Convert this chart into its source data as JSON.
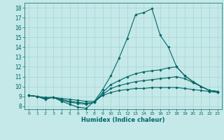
{
  "title": "",
  "xlabel": "Humidex (Indice chaleur)",
  "ylabel": "",
  "bg_color": "#c5e8e8",
  "line_color": "#006666",
  "grid_color": "#a8d5d5",
  "xlim": [
    -0.5,
    23.5
  ],
  "ylim": [
    7.7,
    18.5
  ],
  "yticks": [
    8,
    9,
    10,
    11,
    12,
    13,
    14,
    15,
    16,
    17,
    18
  ],
  "xticks": [
    0,
    1,
    2,
    3,
    4,
    5,
    6,
    7,
    8,
    9,
    10,
    11,
    12,
    13,
    14,
    15,
    16,
    17,
    18,
    19,
    20,
    21,
    22,
    23
  ],
  "lines": [
    {
      "x": [
        0,
        1,
        2,
        3,
        4,
        5,
        6,
        7,
        8,
        9,
        10,
        11,
        12,
        13,
        14,
        15,
        16,
        17,
        18,
        19,
        20,
        21,
        22,
        23
      ],
      "y": [
        9.1,
        9.0,
        8.7,
        8.9,
        8.5,
        8.2,
        7.9,
        7.8,
        8.5,
        9.7,
        11.1,
        12.9,
        14.9,
        17.3,
        17.5,
        17.9,
        15.2,
        14.0,
        12.0,
        11.1,
        10.5,
        10.0,
        9.6,
        9.5
      ]
    },
    {
      "x": [
        0,
        1,
        2,
        3,
        4,
        5,
        6,
        7,
        8,
        9,
        10,
        11,
        12,
        13,
        14,
        15,
        16,
        17,
        18,
        19,
        20,
        21,
        22,
        23
      ],
      "y": [
        9.1,
        9.0,
        8.8,
        8.9,
        8.6,
        8.4,
        8.3,
        8.2,
        8.4,
        9.4,
        10.2,
        10.6,
        11.0,
        11.3,
        11.5,
        11.6,
        11.7,
        11.9,
        12.0,
        11.1,
        10.5,
        10.0,
        9.6,
        9.5
      ]
    },
    {
      "x": [
        0,
        1,
        2,
        3,
        4,
        5,
        6,
        7,
        8,
        9,
        10,
        11,
        12,
        13,
        14,
        15,
        16,
        17,
        18,
        19,
        20,
        21,
        22,
        23
      ],
      "y": [
        9.1,
        9.0,
        8.8,
        8.9,
        8.7,
        8.5,
        8.4,
        8.3,
        8.4,
        9.2,
        9.8,
        10.1,
        10.3,
        10.5,
        10.6,
        10.7,
        10.8,
        10.9,
        11.0,
        10.8,
        10.4,
        10.0,
        9.6,
        9.5
      ]
    },
    {
      "x": [
        0,
        1,
        2,
        3,
        4,
        5,
        6,
        7,
        8,
        9,
        10,
        11,
        12,
        13,
        14,
        15,
        16,
        17,
        18,
        19,
        20,
        21,
        22,
        23
      ],
      "y": [
        9.1,
        9.0,
        8.9,
        8.9,
        8.8,
        8.7,
        8.6,
        8.5,
        8.5,
        9.1,
        9.4,
        9.6,
        9.7,
        9.8,
        9.8,
        9.9,
        9.9,
        9.9,
        9.9,
        9.8,
        9.7,
        9.6,
        9.5,
        9.4
      ]
    }
  ]
}
